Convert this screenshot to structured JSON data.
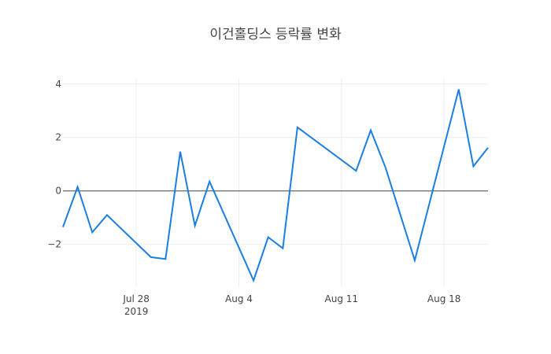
{
  "chart_data": {
    "type": "line",
    "title": "이건홀딩스 등락률 변화",
    "xlabel": "",
    "ylabel": "",
    "x_range": [
      "2019-07-23",
      "2019-08-21"
    ],
    "ylim": [
      -3.6,
      4.2
    ],
    "grid": true,
    "zero_line": true,
    "line_color": "#1a7fe0",
    "grid_color": "#eeeeee",
    "x_ticks": [
      {
        "date": "2019-07-28",
        "label": "Jul 28",
        "sublabel": "2019"
      },
      {
        "date": "2019-08-04",
        "label": "Aug 4",
        "sublabel": ""
      },
      {
        "date": "2019-08-11",
        "label": "Aug 11",
        "sublabel": ""
      },
      {
        "date": "2019-08-18",
        "label": "Aug 18",
        "sublabel": ""
      }
    ],
    "y_ticks": [
      {
        "value": 4,
        "label": "4"
      },
      {
        "value": 2,
        "label": "2"
      },
      {
        "value": 0,
        "label": "0"
      },
      {
        "value": -2,
        "label": "−2"
      }
    ],
    "series": [
      {
        "x": [
          "2019-07-23",
          "2019-07-24",
          "2019-07-25",
          "2019-07-26",
          "2019-07-29",
          "2019-07-30",
          "2019-07-31",
          "2019-08-01",
          "2019-08-02",
          "2019-08-05",
          "2019-08-06",
          "2019-08-07",
          "2019-08-08",
          "2019-08-12",
          "2019-08-13",
          "2019-08-14",
          "2019-08-16",
          "2019-08-19",
          "2019-08-20",
          "2019-08-21"
        ],
        "y": [
          -1.35,
          0.15,
          -1.55,
          -0.9,
          -2.48,
          -2.55,
          1.47,
          -1.3,
          0.35,
          -3.35,
          -1.73,
          -2.15,
          2.38,
          0.75,
          2.27,
          0.88,
          -2.6,
          3.8,
          0.92,
          1.62
        ]
      }
    ]
  }
}
